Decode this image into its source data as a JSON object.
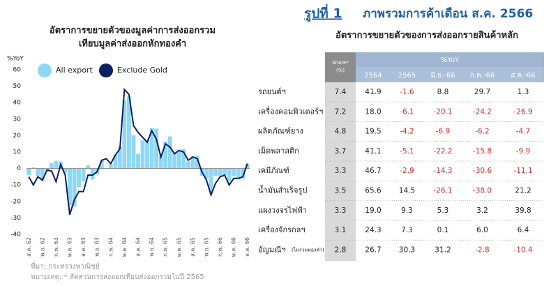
{
  "chart_data": {
    "type": "bar_line",
    "title": [
      "อัตราการขยายตัวของมูลค่าการส่งออกรวม",
      "เทียบมูลค่าส่งออกหักทองคำ"
    ],
    "ylabel": "%YoY",
    "categories": [
      "ส.ค. 62",
      null,
      null,
      "พ.ย. 62",
      null,
      null,
      "ก.พ. 63",
      null,
      null,
      "พ.ค. 63",
      null,
      null,
      "ส.ค. 63",
      null,
      null,
      "พ.ย. 63",
      null,
      null,
      "ก.พ. 64",
      null,
      null,
      "พ.ค. 64",
      null,
      null,
      "ส.ค. 64",
      null,
      null,
      "พ.ย. 64",
      null,
      null,
      "ก.พ. 65",
      null,
      null,
      "พ.ค. 65",
      null,
      null,
      "ส.ค. 65",
      null,
      null,
      "พ.ย. 65",
      null,
      null,
      "ก.พ. 66",
      null,
      null,
      "พ.ค. 66",
      null,
      null,
      "ส.ค. 66"
    ],
    "series": [
      {
        "name": "All export",
        "kind": "bar",
        "color": "#8fd8f5",
        "values": [
          -4.0,
          0.7,
          -4.5,
          -7.7,
          -1.3,
          3.4,
          4.5,
          4.2,
          -2.6,
          -22.5,
          -23.2,
          -11.4,
          -7.9,
          2.0,
          -6.7,
          -3.6,
          4.7,
          0.4,
          2.6,
          8.5,
          13.1,
          41.6,
          43.8,
          20.3,
          8.9,
          17.1,
          17.4,
          24.7,
          24.2,
          8.0,
          16.2,
          19.5,
          9.9,
          10.5,
          11.9,
          4.3,
          7.5,
          7.8,
          -4.4,
          -6.0,
          -14.6,
          -4.5,
          -4.7,
          -4.2,
          -7.6,
          -4.6,
          -6.4,
          -6.2,
          2.6
        ]
      },
      {
        "name": "Exclude Gold",
        "kind": "line",
        "color": "#0c1f5e",
        "values": [
          -5,
          -10,
          -5,
          -7,
          -1,
          -1.5,
          -8,
          2.5,
          -4,
          -28,
          -19,
          -14,
          -14,
          -4,
          -4,
          -2,
          5,
          6,
          3,
          8,
          12,
          48,
          45,
          26,
          22,
          19,
          16,
          23,
          18,
          7,
          15,
          13,
          9,
          11,
          10,
          5,
          7,
          6,
          -2,
          -7,
          -16,
          -9,
          -5,
          -4,
          -10,
          -6,
          -6,
          -5,
          3
        ]
      }
    ],
    "ylim": [
      -40,
      60
    ],
    "yticks": [
      60,
      50,
      40,
      30,
      20,
      10,
      0,
      -10,
      -20,
      -30,
      -40
    ],
    "grid": false
  },
  "notes": {
    "source": "ที่มา: กระทรวงพาณิชย์",
    "note": "หมายเหตุ: * สัดส่วนการส่งออกเทียบส่งออกรวมในปี 2565"
  },
  "figure": {
    "number": "รูปที่ 1",
    "title": "ภาพรวมการค้าเดือน ส.ค. 2566"
  },
  "table": {
    "title": "อัตราการขยายตัวของการส่งออกรายสินค้าหลัก",
    "share_header": "Share*",
    "share_unit": "(%)",
    "group_header": "%YoY",
    "columns": [
      "2564",
      "2565",
      "มิ.ย.-66",
      "ก.ค.-66",
      "ส.ค.-66"
    ],
    "rows": [
      {
        "label": "รถยนต์ฯ",
        "cells": [
          "7.4",
          "41.9",
          "-1.6",
          "8.8",
          "29.7",
          "1.3"
        ]
      },
      {
        "label": "เครื่องคอมพิวเตอร์ฯ",
        "cells": [
          "7.2",
          "18.0",
          "-6.1",
          "-20.1",
          "-24.2",
          "-26.9"
        ]
      },
      {
        "label": "ผลิตภัณฑ์ยาง",
        "cells": [
          "4.8",
          "19.5",
          "-4.2",
          "-6.9",
          "-6.2",
          "-4.7"
        ]
      },
      {
        "label": "เม็ดพลาสติก",
        "cells": [
          "3.7",
          "41.1",
          "-5.1",
          "-22.2",
          "-15.8",
          "-9.9"
        ]
      },
      {
        "label": "เคมีภัณฑ์",
        "cells": [
          "3.3",
          "46.7",
          "-2.9",
          "-14.3",
          "-30.6",
          "-11.1"
        ]
      },
      {
        "label": "น้ำมันสำเร็จรูป",
        "cells": [
          "3.5",
          "65.6",
          "14.5",
          "-26.1",
          "-38.0",
          "21.2"
        ]
      },
      {
        "label": "แผงวงจรไฟฟ้า",
        "cells": [
          "3.3",
          "19.0",
          "9.3",
          "5.3",
          "3.2",
          "39.8"
        ]
      },
      {
        "label": "เครื่องจักรกลฯ",
        "cells": [
          "3.1",
          "24.3",
          "7.3",
          "0.1",
          "6.0",
          "6.4"
        ]
      },
      {
        "label": "อัญมณีฯ",
        "note": "(ไม่รวมทองคำ)",
        "cells": [
          "2.8",
          "26.7",
          "30.3",
          "31.2",
          "-2.8",
          "-10.4"
        ]
      }
    ]
  }
}
